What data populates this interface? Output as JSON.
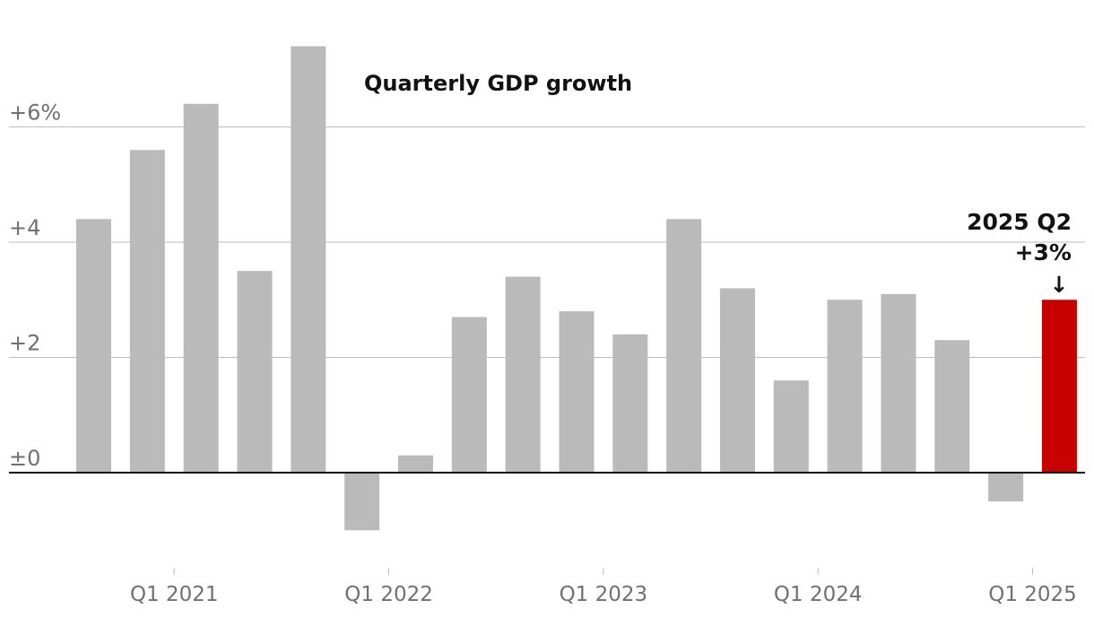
{
  "chart_data": {
    "type": "bar",
    "title": "Quarterly GDP growth",
    "xlabel": "",
    "ylabel": "",
    "ylim": [
      -1.8,
      7.6
    ],
    "yticks": [
      {
        "value": 0,
        "label": "±0"
      },
      {
        "value": 2,
        "label": "+2"
      },
      {
        "value": 4,
        "label": "+4"
      },
      {
        "value": 6,
        "label": "+6%"
      }
    ],
    "grid": true,
    "xticks": [
      {
        "index": 1.5,
        "label": "Q1 2021"
      },
      {
        "index": 5.5,
        "label": "Q1 2022"
      },
      {
        "index": 9.5,
        "label": "Q1 2023"
      },
      {
        "index": 13.5,
        "label": "Q1 2024"
      },
      {
        "index": 17.5,
        "label": "Q1 2025"
      }
    ],
    "values": [
      4.4,
      5.6,
      6.4,
      3.5,
      7.4,
      -1.0,
      0.3,
      2.7,
      3.4,
      2.8,
      2.4,
      4.4,
      3.2,
      1.6,
      3.0,
      3.1,
      2.3,
      -0.5,
      3.0
    ],
    "highlight_index": 18,
    "colors": {
      "bar": "#bababa",
      "highlight": "#c70000",
      "grid": "#bdbdbd",
      "baseline": "#121212"
    },
    "annotation": {
      "line1": "2025 Q2",
      "line2": "+3%",
      "arrow": "↓"
    }
  }
}
